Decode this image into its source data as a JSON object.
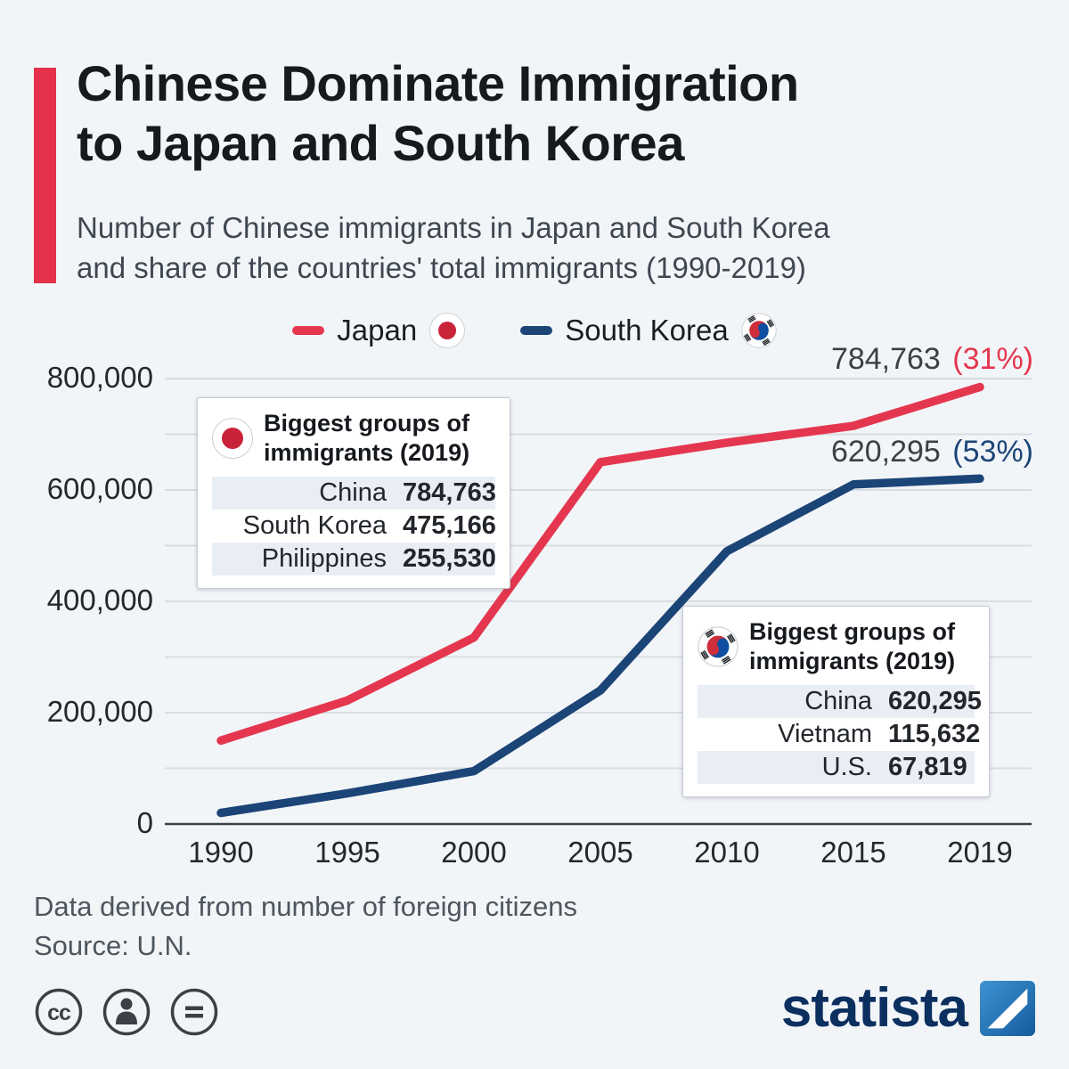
{
  "header": {
    "title_line1": "Chinese Dominate Immigration",
    "title_line2": "to Japan and South Korea",
    "subtitle_line1": "Number of Chinese immigrants in Japan and South Korea",
    "subtitle_line2": "and share of the countries' total immigrants (1990-2019)",
    "accent_color": "#e5314d"
  },
  "legend": [
    {
      "label": "Japan",
      "flag": "japan-flag-icon"
    },
    {
      "label": "South Korea",
      "flag": "south-korea-flag-icon"
    }
  ],
  "chart_data": {
    "type": "line",
    "x": [
      "1990",
      "1995",
      "2000",
      "2005",
      "2010",
      "2015",
      "2019"
    ],
    "ylim": [
      0,
      800000
    ],
    "grid": true,
    "grid_interval": 100000,
    "y_ticks": [
      {
        "value": 0,
        "label": "0"
      },
      {
        "value": 200000,
        "label": "200,000"
      },
      {
        "value": 400000,
        "label": "400,000"
      },
      {
        "value": 600000,
        "label": "600,000"
      },
      {
        "value": 800000,
        "label": "800,000"
      }
    ],
    "series": [
      {
        "name": "Japan",
        "color": "#e4374f",
        "values": [
          150000,
          222000,
          335000,
          650000,
          685000,
          715000,
          784763
        ],
        "end_value_label": "784,763",
        "end_share_label": "(31%)"
      },
      {
        "name": "South Korea",
        "color": "#1c4577",
        "values": [
          20000,
          55000,
          95000,
          240000,
          490000,
          610000,
          620295
        ],
        "end_value_label": "620,295",
        "end_share_label": "(53%)"
      }
    ],
    "legend_position": "top-center"
  },
  "callouts": [
    {
      "flag": "japan-flag-icon",
      "title_line1": "Biggest groups of",
      "title_line2": "immigrants (2019)",
      "rows": [
        {
          "country": "China",
          "value": "784,763"
        },
        {
          "country": "South Korea",
          "value": "475,166"
        },
        {
          "country": "Philippines",
          "value": "255,530"
        }
      ]
    },
    {
      "flag": "south-korea-flag-icon",
      "title_line1": "Biggest groups of",
      "title_line2": "immigrants (2019)",
      "rows": [
        {
          "country": "China",
          "value": "620,295"
        },
        {
          "country": "Vietnam",
          "value": "115,632"
        },
        {
          "country": "U.S.",
          "value": "67,819"
        }
      ]
    }
  ],
  "footer": {
    "note": "Data derived from number of foreign citizens",
    "source": "Source: U.N.",
    "logo_text": "statista"
  },
  "license_badges": [
    {
      "name": "creative-commons-icon",
      "glyph": "cc"
    },
    {
      "name": "attribution-icon"
    },
    {
      "name": "no-derivatives-icon"
    }
  ]
}
